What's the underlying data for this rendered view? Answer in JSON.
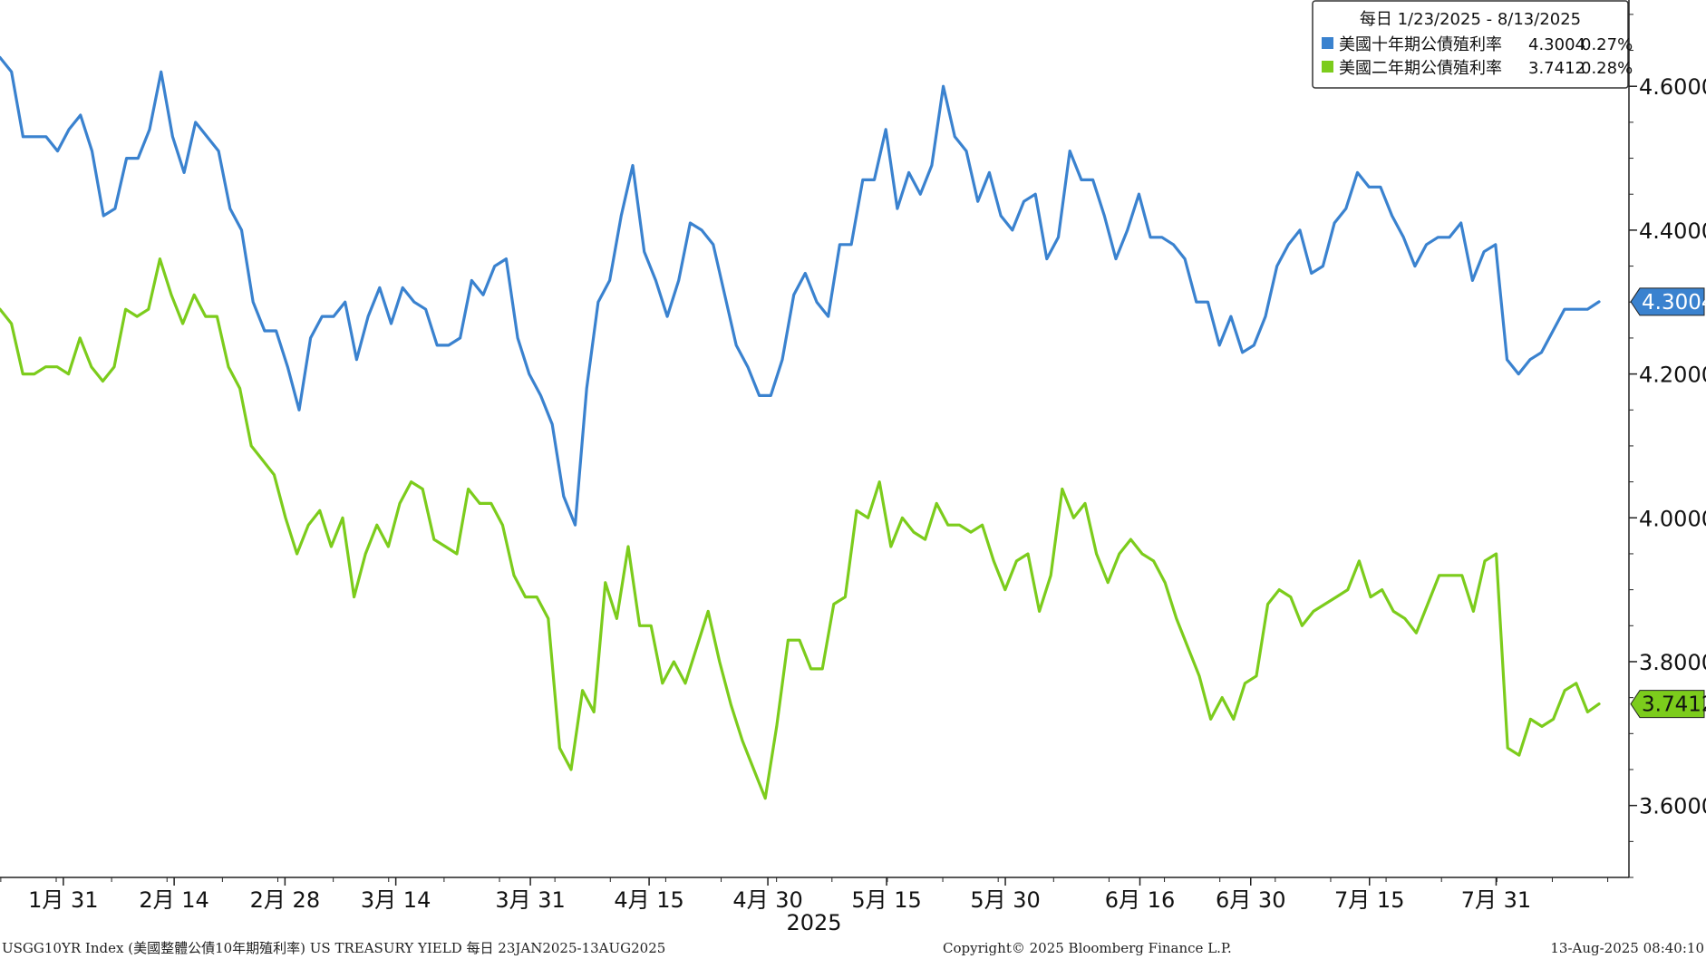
{
  "chart_data": {
    "type": "line",
    "title": "",
    "xlabel": "2025",
    "ylabel": "",
    "ylim": [
      3.5,
      4.72
    ],
    "yticks": [
      "4.6000",
      "4.4000",
      "4.2000",
      "4.0000",
      "3.8000",
      "3.6000"
    ],
    "ytick_values": [
      4.6,
      4.4,
      4.2,
      4.0,
      3.8,
      3.6
    ],
    "xticks": [
      {
        "label": "1月 31",
        "date": "2025-01-31"
      },
      {
        "label": "2月 14",
        "date": "2025-02-14"
      },
      {
        "label": "2月 28",
        "date": "2025-02-28"
      },
      {
        "label": "3月 14",
        "date": "2025-03-14"
      },
      {
        "label": "3月 31",
        "date": "2025-03-31"
      },
      {
        "label": "4月 15",
        "date": "2025-04-15"
      },
      {
        "label": "4月 30",
        "date": "2025-04-30"
      },
      {
        "label": "5月 15",
        "date": "2025-05-15"
      },
      {
        "label": "5月 30",
        "date": "2025-05-30"
      },
      {
        "label": "6月 16",
        "date": "2025-06-16"
      },
      {
        "label": "6月 30",
        "date": "2025-06-30"
      },
      {
        "label": "7月 15",
        "date": "2025-07-15"
      },
      {
        "label": "7月 31",
        "date": "2025-07-31"
      }
    ],
    "grid": false,
    "legend_position": "top-right",
    "legend_header": "每日 1/23/2025 - 8/13/2025",
    "series": [
      {
        "name": "美國十年期公債殖利率",
        "last": "4.3004",
        "change": "0.27%",
        "color": "#3a82cf",
        "values": [
          4.64,
          4.62,
          4.53,
          4.53,
          4.53,
          4.51,
          4.54,
          4.56,
          4.51,
          4.42,
          4.43,
          4.5,
          4.5,
          4.54,
          4.62,
          4.53,
          4.48,
          4.55,
          4.53,
          4.51,
          4.43,
          4.4,
          4.3,
          4.26,
          4.26,
          4.21,
          4.15,
          4.25,
          4.28,
          4.28,
          4.3,
          4.22,
          4.28,
          4.32,
          4.27,
          4.32,
          4.3,
          4.29,
          4.24,
          4.24,
          4.25,
          4.33,
          4.31,
          4.35,
          4.36,
          4.25,
          4.2,
          4.17,
          4.13,
          4.03,
          3.99,
          4.18,
          4.3,
          4.33,
          4.42,
          4.49,
          4.37,
          4.33,
          4.28,
          4.33,
          4.41,
          4.4,
          4.38,
          4.31,
          4.24,
          4.21,
          4.17,
          4.17,
          4.22,
          4.31,
          4.34,
          4.3,
          4.28,
          4.38,
          4.38,
          4.47,
          4.47,
          4.54,
          4.43,
          4.48,
          4.45,
          4.49,
          4.6,
          4.53,
          4.51,
          4.44,
          4.48,
          4.42,
          4.4,
          4.44,
          4.45,
          4.36,
          4.39,
          4.51,
          4.47,
          4.47,
          4.42,
          4.36,
          4.4,
          4.45,
          4.39,
          4.39,
          4.38,
          4.36,
          4.3,
          4.3,
          4.24,
          4.28,
          4.23,
          4.24,
          4.28,
          4.35,
          4.38,
          4.4,
          4.34,
          4.35,
          4.41,
          4.43,
          4.48,
          4.46,
          4.46,
          4.42,
          4.39,
          4.35,
          4.38,
          4.39,
          4.39,
          4.41,
          4.33,
          4.37,
          4.38,
          4.22,
          4.2,
          4.22,
          4.23,
          4.26,
          4.29,
          4.29,
          4.29,
          4.3004
        ]
      },
      {
        "name": "美國二年期公債殖利率",
        "last": "3.7412",
        "change": "0.28%",
        "color": "#7ccc1c",
        "values": [
          4.29,
          4.27,
          4.2,
          4.2,
          4.21,
          4.21,
          4.2,
          4.25,
          4.21,
          4.19,
          4.21,
          4.29,
          4.28,
          4.29,
          4.36,
          4.31,
          4.27,
          4.31,
          4.28,
          4.28,
          4.21,
          4.18,
          4.1,
          4.08,
          4.06,
          4.0,
          3.95,
          3.99,
          4.01,
          3.96,
          4.0,
          3.89,
          3.95,
          3.99,
          3.96,
          4.02,
          4.05,
          4.04,
          3.97,
          3.96,
          3.95,
          4.04,
          4.02,
          4.02,
          3.99,
          3.92,
          3.89,
          3.89,
          3.86,
          3.68,
          3.65,
          3.76,
          3.73,
          3.91,
          3.86,
          3.96,
          3.85,
          3.85,
          3.77,
          3.8,
          3.77,
          3.82,
          3.87,
          3.8,
          3.74,
          3.69,
          3.65,
          3.61,
          3.71,
          3.83,
          3.83,
          3.79,
          3.79,
          3.88,
          3.89,
          4.01,
          4.0,
          4.05,
          3.96,
          4.0,
          3.98,
          3.97,
          4.02,
          3.99,
          3.99,
          3.98,
          3.99,
          3.94,
          3.9,
          3.94,
          3.95,
          3.87,
          3.92,
          4.04,
          4.0,
          4.02,
          3.95,
          3.91,
          3.95,
          3.97,
          3.95,
          3.94,
          3.91,
          3.86,
          3.82,
          3.78,
          3.72,
          3.75,
          3.72,
          3.77,
          3.78,
          3.88,
          3.9,
          3.89,
          3.85,
          3.87,
          3.88,
          3.89,
          3.9,
          3.94,
          3.89,
          3.9,
          3.87,
          3.86,
          3.84,
          3.88,
          3.92,
          3.92,
          3.92,
          3.87,
          3.94,
          3.95,
          3.68,
          3.67,
          3.72,
          3.71,
          3.72,
          3.76,
          3.77,
          3.73,
          3.7412
        ]
      }
    ]
  },
  "footer": {
    "left": "USGG10YR Index (美國整體公債10年期殖利率) US TREASURY YIELD  每日 23JAN2025-13AUG2025",
    "center": "Copyright© 2025 Bloomberg Finance L.P.",
    "right": "13-Aug-2025 08:40:10"
  }
}
